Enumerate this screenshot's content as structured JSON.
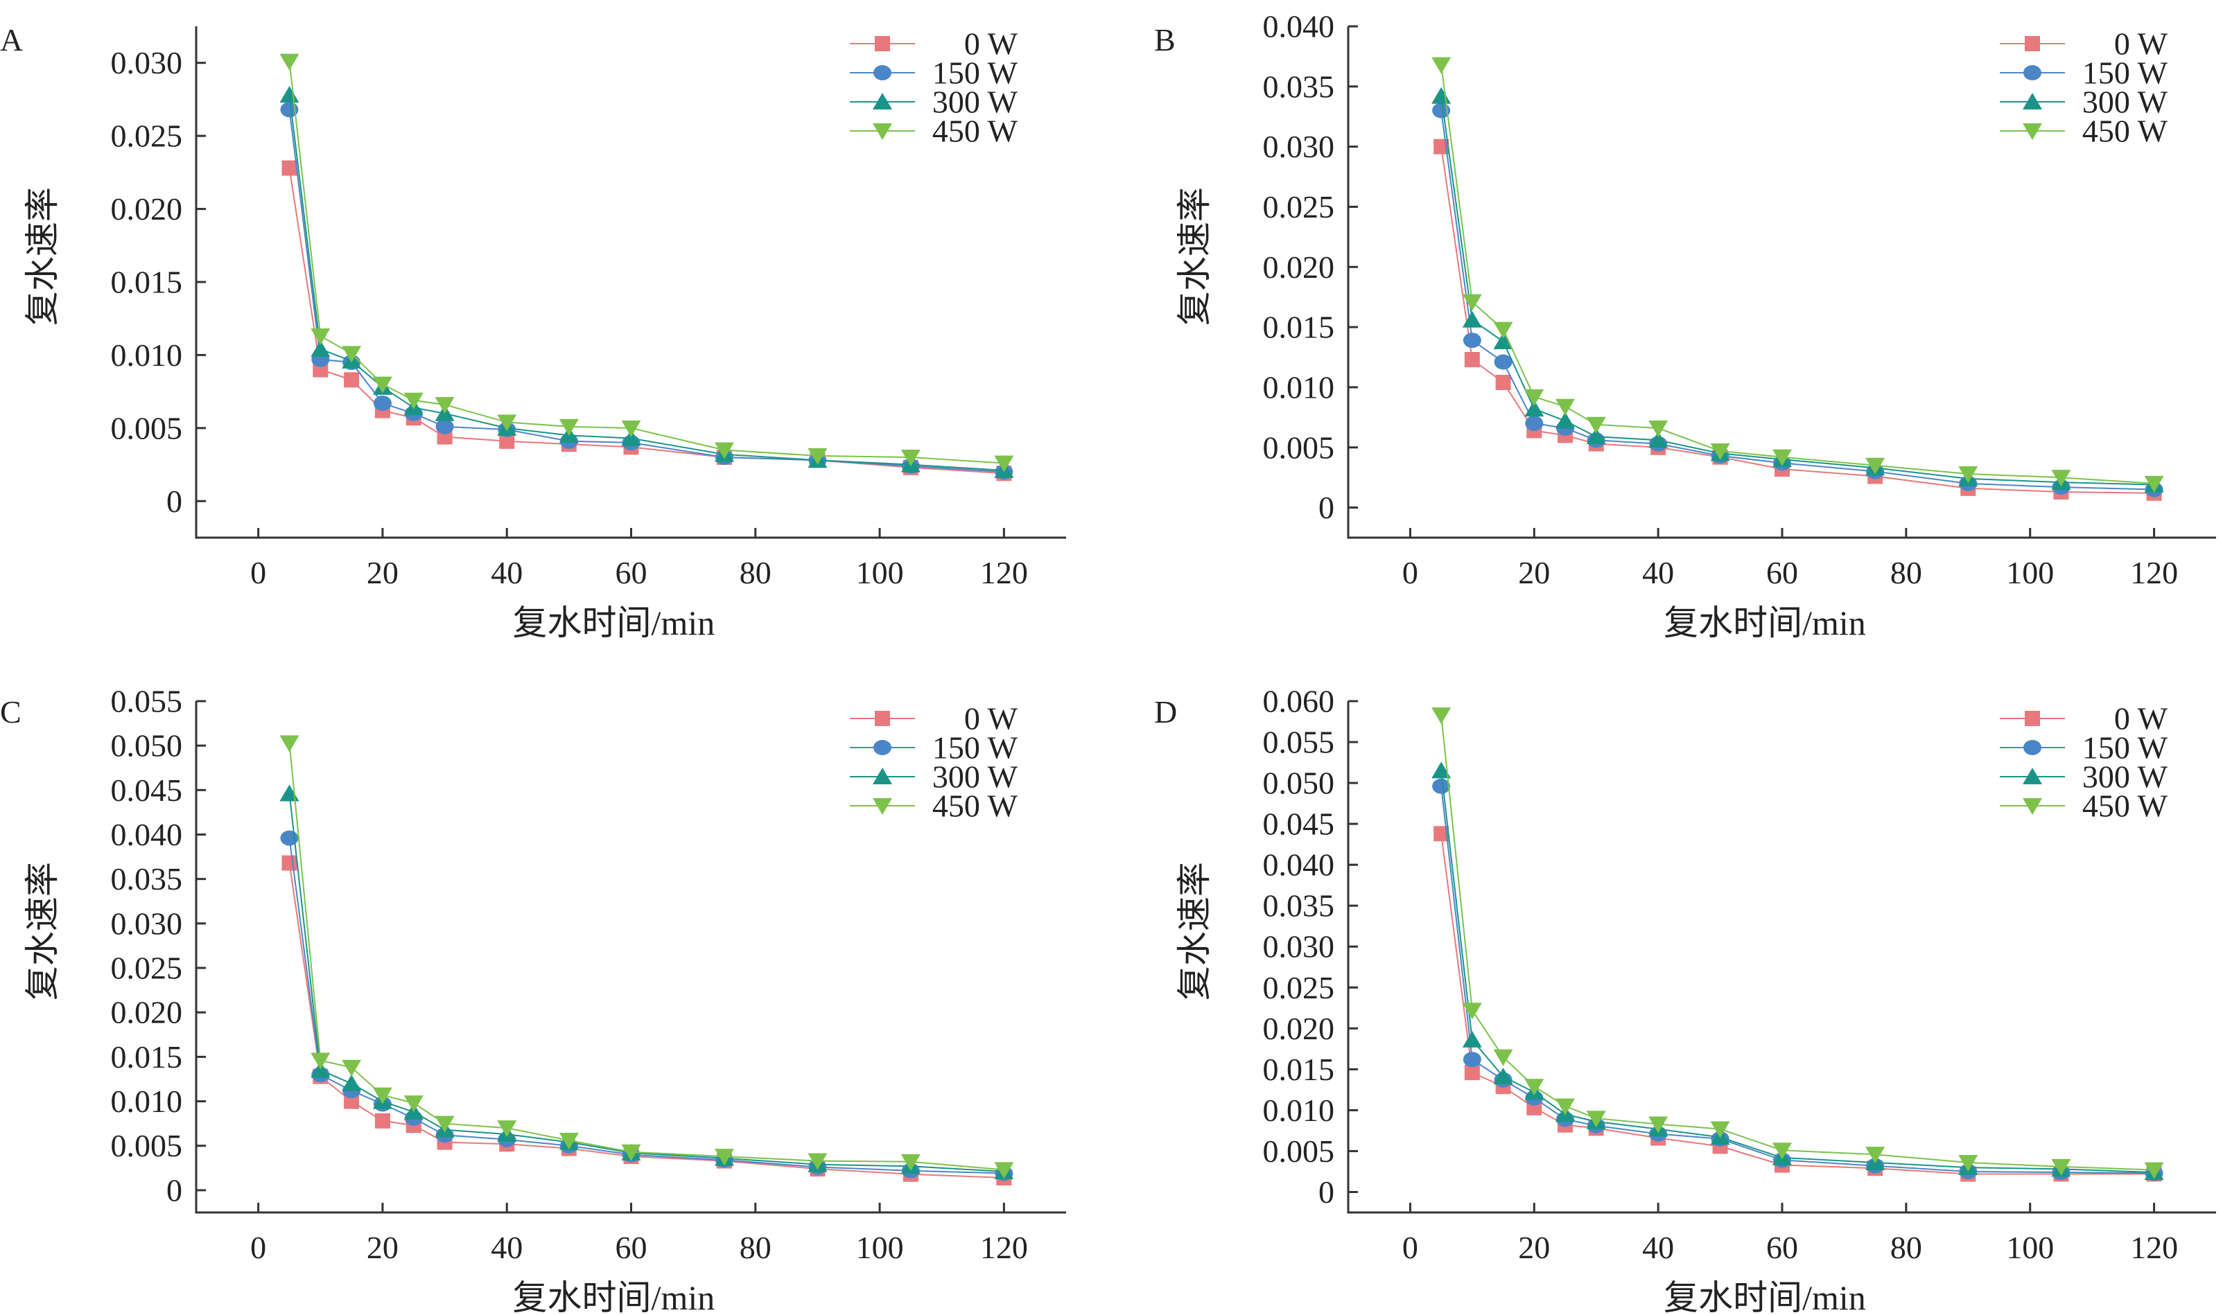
{
  "colors": {
    "0 W": "#e8787c",
    "150 W": "#4a86c7",
    "300 W": "#1b9488",
    "450 W": "#7cc24a"
  },
  "markers": {
    "0 W": "square",
    "150 W": "circle",
    "300 W": "triangle-up",
    "450 W": "triangle-down"
  },
  "chart_data": [
    {
      "panel": "A",
      "type": "line",
      "xlabel": "复水时间/min",
      "ylabel": "复水速率",
      "xlim": [
        -10,
        130
      ],
      "ylim": [
        -0.0025,
        0.0325
      ],
      "xticks": [
        0,
        20,
        40,
        60,
        80,
        100,
        120
      ],
      "yticks": [
        0,
        0.005,
        0.01,
        0.015,
        0.02,
        0.025,
        0.03
      ],
      "yticklabels": [
        "0",
        "0.005",
        "0.010",
        "0.015",
        "0.020",
        "0.025",
        "0.030"
      ],
      "legend": "top-right",
      "x": [
        5,
        10,
        15,
        20,
        25,
        30,
        40,
        50,
        60,
        75,
        90,
        105,
        120
      ],
      "series": [
        {
          "name": "0 W",
          "values": [
            0.0228,
            0.009,
            0.0083,
            0.0062,
            0.0057,
            0.0044,
            0.0041,
            0.0039,
            0.0037,
            0.003,
            0.0028,
            0.0023,
            0.0019
          ]
        },
        {
          "name": "150 W",
          "values": [
            0.0268,
            0.0097,
            0.0095,
            0.0067,
            0.006,
            0.0051,
            0.0049,
            0.0041,
            0.004,
            0.003,
            0.0028,
            0.0024,
            0.002
          ]
        },
        {
          "name": "300 W",
          "values": [
            0.0278,
            0.0104,
            0.0096,
            0.0078,
            0.0064,
            0.006,
            0.005,
            0.0045,
            0.0043,
            0.0032,
            0.0028,
            0.0025,
            0.0021
          ]
        },
        {
          "name": "450 W",
          "values": [
            0.0301,
            0.0113,
            0.0101,
            0.008,
            0.0069,
            0.0066,
            0.0054,
            0.0051,
            0.005,
            0.0035,
            0.0031,
            0.003,
            0.0026
          ]
        }
      ]
    },
    {
      "panel": "B",
      "type": "line",
      "xlabel": "复水时间/min",
      "ylabel": "复水速率",
      "xlim": [
        -10,
        130
      ],
      "ylim": [
        -0.0025,
        0.04
      ],
      "xticks": [
        0,
        20,
        40,
        60,
        80,
        100,
        120
      ],
      "yticks": [
        0,
        0.005,
        0.01,
        0.015,
        0.02,
        0.025,
        0.03,
        0.035,
        0.04
      ],
      "yticklabels": [
        "0",
        "0.005",
        "0.010",
        "0.015",
        "0.020",
        "0.025",
        "0.030",
        "0.035",
        "0.040"
      ],
      "legend": "top-right",
      "x": [
        5,
        10,
        15,
        20,
        25,
        30,
        40,
        50,
        60,
        75,
        90,
        105,
        120
      ],
      "series": [
        {
          "name": "0 W",
          "values": [
            0.03,
            0.0123,
            0.0104,
            0.0064,
            0.006,
            0.0053,
            0.005,
            0.0042,
            0.0032,
            0.0026,
            0.0016,
            0.0013,
            0.0012
          ]
        },
        {
          "name": "150 W",
          "values": [
            0.033,
            0.0139,
            0.0121,
            0.007,
            0.0066,
            0.0056,
            0.0053,
            0.0043,
            0.0037,
            0.003,
            0.002,
            0.0017,
            0.0015
          ]
        },
        {
          "name": "300 W",
          "values": [
            0.0342,
            0.0156,
            0.0138,
            0.0082,
            0.0072,
            0.0059,
            0.0056,
            0.0045,
            0.004,
            0.0033,
            0.0024,
            0.0021,
            0.0019
          ]
        },
        {
          "name": "450 W",
          "values": [
            0.0368,
            0.0171,
            0.0148,
            0.0092,
            0.0084,
            0.0069,
            0.0066,
            0.0047,
            0.0042,
            0.0035,
            0.0028,
            0.0025,
            0.002
          ]
        }
      ]
    },
    {
      "panel": "C",
      "type": "line",
      "xlabel": "复水时间/min",
      "ylabel": "复水速率",
      "xlim": [
        -10,
        130
      ],
      "ylim": [
        -0.0025,
        0.055
      ],
      "xticks": [
        0,
        20,
        40,
        60,
        80,
        100,
        120
      ],
      "yticks": [
        0,
        0.005,
        0.01,
        0.015,
        0.02,
        0.025,
        0.03,
        0.035,
        0.04,
        0.045,
        0.05,
        0.055
      ],
      "yticklabels": [
        "0",
        "0.005",
        "0.010",
        "0.015",
        "0.020",
        "0.025",
        "0.030",
        "0.035",
        "0.040",
        "0.045",
        "0.050",
        "0.055"
      ],
      "legend": "top-right",
      "x": [
        5,
        10,
        15,
        20,
        25,
        30,
        40,
        50,
        60,
        75,
        90,
        105,
        120
      ],
      "series": [
        {
          "name": "0 W",
          "values": [
            0.0368,
            0.0128,
            0.01,
            0.0078,
            0.0073,
            0.0054,
            0.0052,
            0.0047,
            0.0038,
            0.0033,
            0.0024,
            0.0018,
            0.0014
          ]
        },
        {
          "name": "150 W",
          "values": [
            0.0396,
            0.013,
            0.0112,
            0.0097,
            0.0081,
            0.0062,
            0.0057,
            0.005,
            0.004,
            0.0034,
            0.0026,
            0.0022,
            0.0019
          ]
        },
        {
          "name": "300 W",
          "values": [
            0.0446,
            0.0135,
            0.012,
            0.01,
            0.0088,
            0.0068,
            0.0063,
            0.0054,
            0.0042,
            0.0036,
            0.0029,
            0.0027,
            0.0021
          ]
        },
        {
          "name": "450 W",
          "values": [
            0.0503,
            0.0146,
            0.0138,
            0.0107,
            0.0098,
            0.0075,
            0.007,
            0.0056,
            0.0043,
            0.0038,
            0.0033,
            0.0032,
            0.0023
          ]
        }
      ]
    },
    {
      "panel": "D",
      "type": "line",
      "xlabel": "复水时间/min",
      "ylabel": "复水速率",
      "xlim": [
        -10,
        130
      ],
      "ylim": [
        -0.0025,
        0.06
      ],
      "xticks": [
        0,
        20,
        40,
        60,
        80,
        100,
        120
      ],
      "yticks": [
        0,
        0.005,
        0.01,
        0.015,
        0.02,
        0.025,
        0.03,
        0.035,
        0.04,
        0.045,
        0.05,
        0.055,
        0.06
      ],
      "yticklabels": [
        "0",
        "0.005",
        "0.010",
        "0.015",
        "0.020",
        "0.025",
        "0.030",
        "0.035",
        "0.040",
        "0.045",
        "0.050",
        "0.055",
        "0.060"
      ],
      "legend": "top-right",
      "x": [
        5,
        10,
        15,
        20,
        25,
        30,
        40,
        50,
        60,
        75,
        90,
        105,
        120
      ],
      "series": [
        {
          "name": "0 W",
          "values": [
            0.0438,
            0.0146,
            0.0129,
            0.0103,
            0.0082,
            0.0078,
            0.0066,
            0.0056,
            0.0033,
            0.0029,
            0.0022,
            0.0022,
            0.0022
          ]
        },
        {
          "name": "150 W",
          "values": [
            0.0496,
            0.0162,
            0.0137,
            0.0115,
            0.0089,
            0.0081,
            0.0071,
            0.0065,
            0.0039,
            0.0032,
            0.0025,
            0.0024,
            0.0023
          ]
        },
        {
          "name": "300 W",
          "values": [
            0.0515,
            0.0186,
            0.0141,
            0.0122,
            0.0095,
            0.0086,
            0.0077,
            0.0067,
            0.0042,
            0.0036,
            0.003,
            0.0028,
            0.0024
          ]
        },
        {
          "name": "450 W",
          "values": [
            0.0583,
            0.0222,
            0.0165,
            0.0129,
            0.0105,
            0.009,
            0.0083,
            0.0077,
            0.0051,
            0.0046,
            0.0036,
            0.0031,
            0.0027
          ]
        }
      ]
    }
  ]
}
